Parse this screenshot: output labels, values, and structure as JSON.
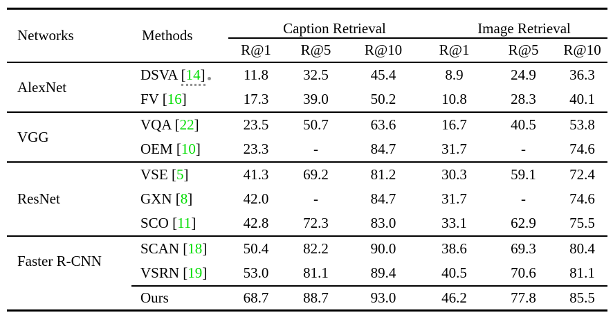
{
  "table": {
    "headers": {
      "networks": "Networks",
      "methods": "Methods",
      "caption_group": "Caption Retrieval",
      "image_group": "Image Retrieval",
      "metrics": [
        "R@1",
        "R@5",
        "R@10",
        "R@1",
        "R@5",
        "R@10"
      ]
    },
    "cite_brackets": {
      "open": "[",
      "close": "]"
    },
    "colors": {
      "citation_green": "#00dd00",
      "artifact_gray": "#8f8f8f",
      "text": "#000000",
      "rule": "#000000"
    },
    "groups": [
      {
        "network": "AlexNet",
        "rows": [
          {
            "method": "DSVA",
            "cite": "14",
            "artifact": true,
            "values": [
              "11.8",
              "32.5",
              "45.4",
              "8.9",
              "24.9",
              "36.3"
            ]
          },
          {
            "method": "FV",
            "cite": "16",
            "values": [
              "17.3",
              "39.0",
              "50.2",
              "10.8",
              "28.3",
              "40.1"
            ]
          }
        ]
      },
      {
        "network": "VGG",
        "rows": [
          {
            "method": "VQA",
            "cite": "22",
            "values": [
              "23.5",
              "50.7",
              "63.6",
              "16.7",
              "40.5",
              "53.8"
            ]
          },
          {
            "method": "OEM",
            "cite": "10",
            "values": [
              "23.3",
              "-",
              "84.7",
              "31.7",
              "-",
              "74.6"
            ]
          }
        ]
      },
      {
        "network": "ResNet",
        "rows": [
          {
            "method": "VSE",
            "cite": "5",
            "values": [
              "41.3",
              "69.2",
              "81.2",
              "30.3",
              "59.1",
              "72.4"
            ]
          },
          {
            "method": "GXN",
            "cite": "8",
            "values": [
              "42.0",
              "-",
              "84.7",
              "31.7",
              "-",
              "74.6"
            ]
          },
          {
            "method": "SCO",
            "cite": "11",
            "values": [
              "42.8",
              "72.3",
              "83.0",
              "33.1",
              "62.9",
              "75.5"
            ]
          }
        ]
      },
      {
        "network": "Faster R-CNN",
        "rows": [
          {
            "method": "SCAN",
            "cite": "18",
            "values": [
              "50.4",
              "82.2",
              "90.0",
              "38.6",
              "69.3",
              "80.4"
            ]
          },
          {
            "method": "VSRN",
            "cite": "19",
            "values": [
              "53.0",
              "81.1",
              "89.4",
              "40.5",
              "70.6",
              "81.1"
            ]
          },
          {
            "method": "Ours",
            "bold": true,
            "values": [
              "68.7",
              "88.7",
              "93.0",
              "46.2",
              "77.8",
              "85.5"
            ]
          }
        ]
      }
    ]
  }
}
